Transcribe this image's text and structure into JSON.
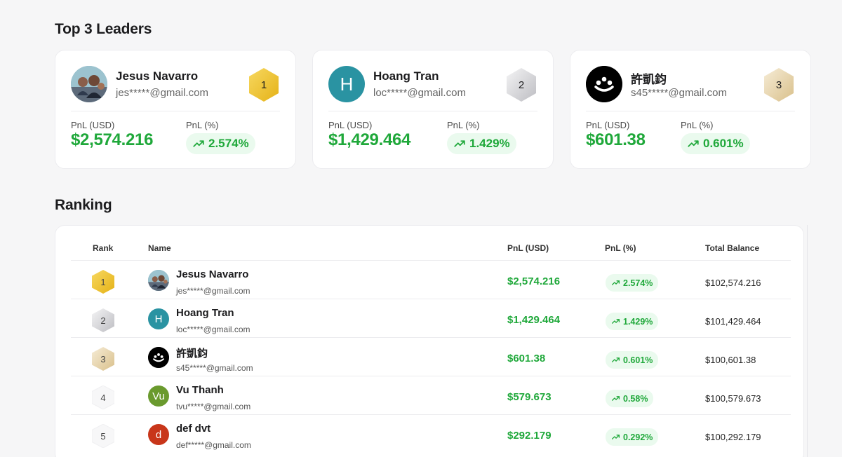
{
  "top_section": {
    "title": "Top 3 Leaders",
    "pnl_usd_label": "PnL (USD)",
    "pnl_pct_label": "PnL (%)",
    "leaders": [
      {
        "name": "Jesus Navarro",
        "email": "jes*****@gmail.com",
        "rank": "1",
        "pnl_usd": "$2,574.216",
        "pnl_pct": "2.574%",
        "avatar_type": "photo",
        "avatar_color": "#7aa6b8"
      },
      {
        "name": "Hoang Tran",
        "email": "loc*****@gmail.com",
        "rank": "2",
        "pnl_usd": "$1,429.464",
        "pnl_pct": "1.429%",
        "avatar_type": "initial",
        "avatar_initial": "H",
        "avatar_color": "#2a93a2"
      },
      {
        "name": "許凱鈞",
        "email": "s45*****@gmail.com",
        "rank": "3",
        "pnl_usd": "$601.38",
        "pnl_pct": "0.601%",
        "avatar_type": "logo",
        "avatar_color": "#000000"
      }
    ]
  },
  "ranking": {
    "title": "Ranking",
    "columns": {
      "rank": "Rank",
      "name": "Name",
      "pnl_usd": "PnL (USD)",
      "pnl_pct": "PnL (%)",
      "balance": "Total Balance"
    },
    "rows": [
      {
        "rank": "1",
        "name": "Jesus Navarro",
        "email": "jes*****@gmail.com",
        "pnl_usd": "$2,574.216",
        "pnl_pct": "2.574%",
        "balance": "$102,574.216",
        "avatar_type": "photo",
        "avatar_color": "#7aa6b8"
      },
      {
        "rank": "2",
        "name": "Hoang Tran",
        "email": "loc*****@gmail.com",
        "pnl_usd": "$1,429.464",
        "pnl_pct": "1.429%",
        "balance": "$101,429.464",
        "avatar_type": "initial",
        "avatar_initial": "H",
        "avatar_color": "#2a93a2"
      },
      {
        "rank": "3",
        "name": "許凱鈞",
        "email": "s45*****@gmail.com",
        "pnl_usd": "$601.38",
        "pnl_pct": "0.601%",
        "balance": "$100,601.38",
        "avatar_type": "logo",
        "avatar_color": "#000000"
      },
      {
        "rank": "4",
        "name": "Vu Thanh",
        "email": "tvu*****@gmail.com",
        "pnl_usd": "$579.673",
        "pnl_pct": "0.58%",
        "balance": "$100,579.673",
        "avatar_type": "initial",
        "avatar_initial": "Vu",
        "avatar_color": "#6a9a2e"
      },
      {
        "rank": "5",
        "name": "def dvt",
        "email": "def*****@gmail.com",
        "pnl_usd": "$292.179",
        "pnl_pct": "0.292%",
        "balance": "$100,292.179",
        "avatar_type": "initial",
        "avatar_initial": "d",
        "avatar_color": "#c8361a"
      }
    ]
  },
  "colors": {
    "positive": "#1fa83a",
    "positive_bg": "#eafaee",
    "gold": "#f2c22a",
    "silver": "#cfcfd2",
    "bronze": "#e8d6ac"
  },
  "icons": {
    "trend": "trending-up-icon",
    "rank_badge": "hexagon-badge-icon"
  }
}
